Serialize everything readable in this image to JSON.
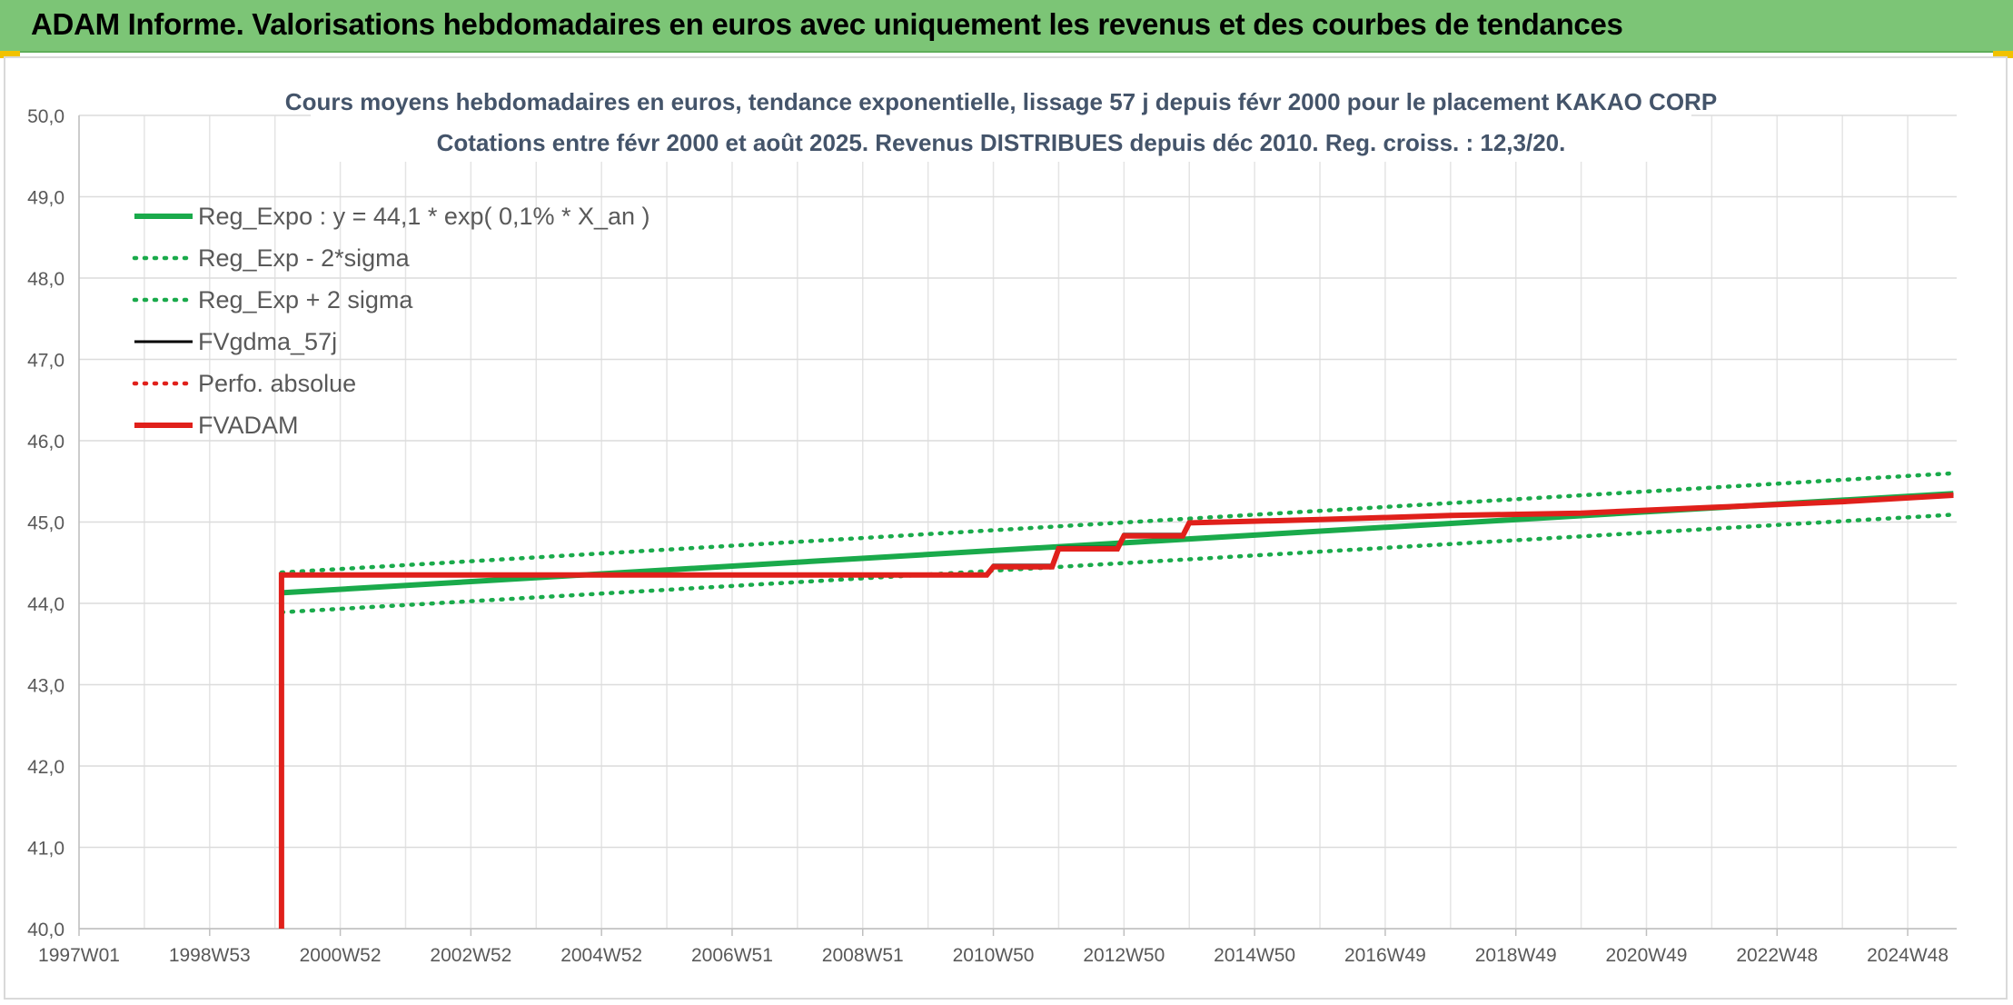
{
  "header": {
    "title": "ADAM Informe. Valorisations hebdomadaires en euros avec uniquement les revenus et des courbes de tendances"
  },
  "chart_data": {
    "type": "line",
    "title": "Cours moyens hebdomadaires en euros, tendance exponentielle, lissage 57 j depuis févr 2000 pour le placement KAKAO CORP",
    "subtitle": "Cotations entre févr 2000 et août 2025. Revenus DISTRIBUES depuis déc 2010. Reg. croiss. : 12,3/20.",
    "xlabel": "",
    "ylabel": "",
    "ylim": [
      40,
      50
    ],
    "xlim": [
      1997.0,
      2025.75
    ],
    "x_ticks": [
      {
        "label": "1997W01",
        "x": 1997.0
      },
      {
        "label": "1998W53",
        "x": 1999.0
      },
      {
        "label": "2000W52",
        "x": 2001.0
      },
      {
        "label": "2002W52",
        "x": 2003.0
      },
      {
        "label": "2004W52",
        "x": 2005.0
      },
      {
        "label": "2006W51",
        "x": 2007.0
      },
      {
        "label": "2008W51",
        "x": 2009.0
      },
      {
        "label": "2010W50",
        "x": 2011.0
      },
      {
        "label": "2012W50",
        "x": 2013.0
      },
      {
        "label": "2014W50",
        "x": 2015.0
      },
      {
        "label": "2016W49",
        "x": 2017.0
      },
      {
        "label": "2018W49",
        "x": 2019.0
      },
      {
        "label": "2020W49",
        "x": 2021.0
      },
      {
        "label": "2022W48",
        "x": 2023.0
      },
      {
        "label": "2024W48",
        "x": 2025.0
      }
    ],
    "y_ticks": [
      "40,0",
      "41,0",
      "42,0",
      "43,0",
      "44,0",
      "45,0",
      "46,0",
      "47,0",
      "48,0",
      "49,0",
      "50,0"
    ],
    "y_tick_values": [
      40,
      41,
      42,
      43,
      44,
      45,
      46,
      47,
      48,
      49,
      50
    ],
    "grid": true,
    "legend_position": "top-left",
    "series": [
      {
        "name": "Reg_Expo : y = 44,1 * exp( 0,1% *  X_an )",
        "color": "#1aaa4b",
        "style": "solid-thick",
        "x": [
          2000.1,
          2025.7
        ],
        "y": [
          44.13,
          45.35
        ]
      },
      {
        "name": "Reg_Exp - 2*sigma",
        "color": "#1aaa4b",
        "style": "dotted",
        "x": [
          2000.1,
          2025.7
        ],
        "y": [
          43.89,
          45.09
        ]
      },
      {
        "name": "Reg_Exp + 2 sigma",
        "color": "#1aaa4b",
        "style": "dotted",
        "x": [
          2000.1,
          2025.7
        ],
        "y": [
          44.38,
          45.6
        ]
      },
      {
        "name": "FVgdma_57j",
        "color": "#000000",
        "style": "solid",
        "x": [
          2000.1,
          2010.9,
          2011.0,
          2011.9,
          2012.0,
          2012.9,
          2013.0,
          2013.9,
          2014.0,
          2016.0,
          2018.0,
          2020.0,
          2022.0,
          2024.0,
          2025.7
        ],
        "y": [
          44.36,
          44.36,
          44.47,
          44.47,
          44.69,
          44.69,
          44.85,
          44.85,
          45.0,
          45.04,
          45.09,
          45.12,
          45.19,
          45.26,
          45.34
        ]
      },
      {
        "name": "Perfo. absolue",
        "color": "#e0201b",
        "style": "dotted",
        "x": [
          2000.1,
          2010.9,
          2011.0,
          2011.9,
          2012.0,
          2012.9,
          2013.0,
          2013.9,
          2014.0,
          2016.0,
          2018.0,
          2020.0,
          2022.0,
          2024.0,
          2025.7
        ],
        "y": [
          44.35,
          44.35,
          44.45,
          44.45,
          44.67,
          44.67,
          44.83,
          44.83,
          44.99,
          45.03,
          45.08,
          45.11,
          45.18,
          45.25,
          45.33
        ]
      },
      {
        "name": "FVADAM",
        "color": "#e0201b",
        "style": "solid-thick",
        "x": [
          2000.1,
          2000.1,
          2010.9,
          2011.0,
          2011.9,
          2012.0,
          2012.9,
          2013.0,
          2013.9,
          2014.0,
          2016.0,
          2018.0,
          2020.0,
          2022.0,
          2024.0,
          2025.7
        ],
        "y": [
          40.0,
          44.35,
          44.35,
          44.45,
          44.45,
          44.67,
          44.67,
          44.83,
          44.83,
          44.99,
          45.03,
          45.08,
          45.11,
          45.18,
          45.25,
          45.33
        ]
      }
    ]
  }
}
